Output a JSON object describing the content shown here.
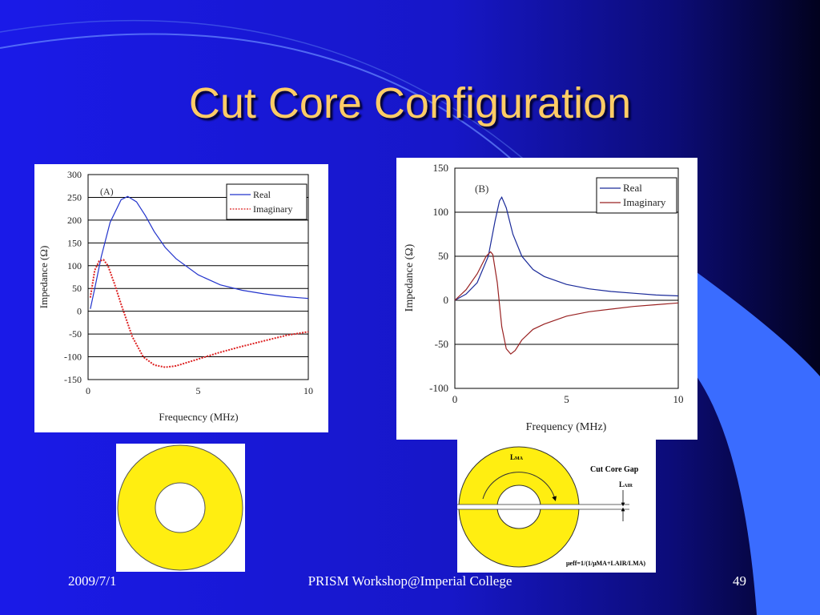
{
  "slide": {
    "title": "Cut Core Configuration",
    "colors": {
      "background": "#1a1adc",
      "title": "#ffcc66",
      "accent": "#3a6cff",
      "core": "#ffee11"
    }
  },
  "footer": {
    "date": "2009/7/1",
    "event": "PRISM Workshop@Imperial College",
    "page_number": "49"
  },
  "chart_data": [
    {
      "type": "line",
      "panel_label": "(A)",
      "xlabel": "Frequecncy (MHz)",
      "ylabel": "Impedance (Ω)",
      "xlim": [
        0,
        10
      ],
      "ylim": [
        -150,
        300
      ],
      "xticks": [
        "0",
        "5",
        "10"
      ],
      "yticks": [
        "300",
        "250",
        "200",
        "150",
        "100",
        "50",
        "0",
        "-50",
        "-100",
        "-150"
      ],
      "grid": "horizontal",
      "legend": "top-right",
      "series": [
        {
          "name": "Real",
          "color": "#2233cc",
          "style": "solid",
          "x": [
            0.1,
            0.3,
            0.6,
            1.0,
            1.5,
            1.8,
            2.2,
            2.6,
            3.0,
            3.5,
            4.0,
            5.0,
            6.0,
            7.0,
            8.0,
            9.0,
            10.0
          ],
          "y": [
            5,
            50,
            120,
            195,
            245,
            252,
            240,
            210,
            175,
            140,
            115,
            80,
            58,
            46,
            38,
            32,
            28
          ]
        },
        {
          "name": "Imaginary",
          "color": "#dd2222",
          "style": "dotted",
          "x": [
            0.1,
            0.3,
            0.5,
            0.7,
            0.9,
            1.2,
            1.5,
            2.0,
            2.5,
            3.0,
            3.5,
            4.0,
            5.0,
            6.0,
            7.0,
            8.0,
            9.0,
            10.0
          ],
          "y": [
            30,
            90,
            110,
            113,
            100,
            60,
            15,
            -55,
            -100,
            -118,
            -123,
            -120,
            -105,
            -90,
            -77,
            -65,
            -53,
            -45
          ]
        }
      ]
    },
    {
      "type": "line",
      "panel_label": "(B)",
      "xlabel": "Frequency (MHz)",
      "ylabel": "Impedance (Ω)",
      "xlim": [
        0,
        10
      ],
      "ylim": [
        -100,
        150
      ],
      "xticks": [
        "0",
        "5",
        "10"
      ],
      "yticks": [
        "150",
        "100",
        "50",
        "0",
        "-50",
        "-100"
      ],
      "grid": "horizontal",
      "legend": "top-right",
      "series": [
        {
          "name": "Real",
          "color": "#1a2a99",
          "style": "solid",
          "x": [
            0,
            0.5,
            1.0,
            1.5,
            1.8,
            2.0,
            2.1,
            2.3,
            2.6,
            3.0,
            3.5,
            4.0,
            5.0,
            6.0,
            7.0,
            8.0,
            9.0,
            10.0
          ],
          "y": [
            0,
            7,
            20,
            50,
            90,
            113,
            117,
            105,
            75,
            50,
            35,
            27,
            18,
            13,
            10,
            8,
            6,
            5
          ]
        },
        {
          "name": "Imaginary",
          "color": "#992222",
          "style": "solid",
          "x": [
            0,
            0.5,
            1.0,
            1.4,
            1.6,
            1.7,
            1.9,
            2.1,
            2.3,
            2.5,
            2.7,
            3.0,
            3.5,
            4.0,
            5.0,
            6.0,
            7.0,
            8.0,
            9.0,
            10.0
          ],
          "y": [
            0,
            12,
            30,
            50,
            55,
            52,
            20,
            -30,
            -55,
            -61,
            -57,
            -45,
            -33,
            -27,
            -18,
            -13,
            -10,
            -7,
            -5,
            -3
          ]
        }
      ]
    }
  ],
  "diagram": {
    "length_label_prefix": "L",
    "length_label_sub": "MA",
    "gap_title": "Cut Core Gap",
    "air_label_prefix": "L",
    "air_label_sub": "AIR",
    "formula": "μeff=1/(1/μMA+LAIR/LMA)"
  }
}
